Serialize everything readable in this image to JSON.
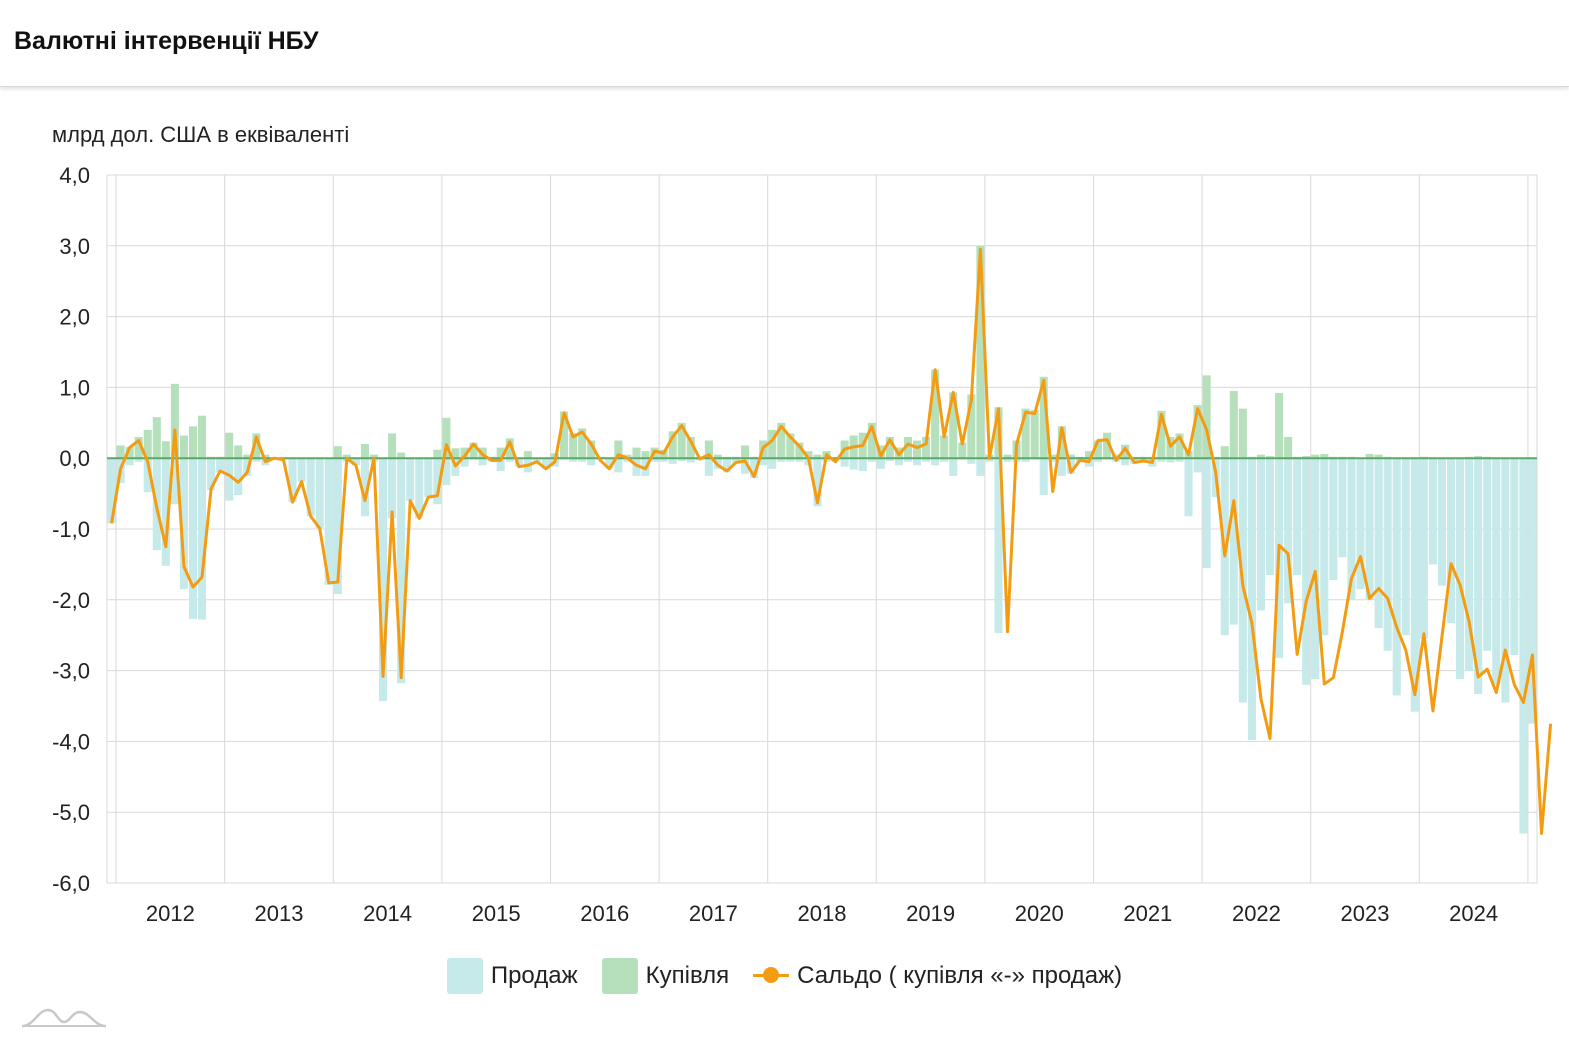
{
  "header": {
    "title": "Валютні інтервенції НБУ"
  },
  "chart_data": {
    "type": "bar+line",
    "title": "Валютні інтервенції НБУ",
    "ylabel": "млрд дол. США в еквіваленті",
    "ylim": [
      -6,
      4
    ],
    "yticks": [
      4,
      3,
      2,
      1,
      0,
      -1,
      -2,
      -3,
      -4,
      -5,
      -6
    ],
    "ytick_labels": [
      "4,0",
      "3,0",
      "2,0",
      "1,0",
      "0,0",
      "-1,0",
      "-2,0",
      "-3,0",
      "-4,0",
      "-5,0",
      "-6,0"
    ],
    "x_start": "2011-12",
    "x_end": "2024-12",
    "year_labels": [
      "2012",
      "2013",
      "2014",
      "2015",
      "2016",
      "2017",
      "2018",
      "2019",
      "2020",
      "2021",
      "2022",
      "2023",
      "2024"
    ],
    "series": [
      {
        "name": "Продаж",
        "color": "#c6e9ea",
        "values": [
          -0.92,
          -0.35,
          -0.1,
          -0.05,
          -0.48,
          -1.3,
          -1.52,
          -0.65,
          -1.85,
          -2.27,
          -2.28,
          -0.45,
          -0.2,
          -0.6,
          -0.52,
          -0.25,
          -0.05,
          -0.1,
          -0.02,
          -0.02,
          -0.62,
          -0.33,
          -0.82,
          -0.99,
          -1.79,
          -1.92,
          -0.05,
          -0.1,
          -0.82,
          -0.05,
          -3.43,
          -0.85,
          -3.18,
          -0.6,
          -0.85,
          -0.55,
          -0.65,
          -0.38,
          -0.25,
          -0.12,
          -0.02,
          -0.1,
          -0.05,
          -0.18,
          -0.05,
          -0.12,
          -0.2,
          -0.05,
          -0.15,
          -0.12,
          -0.02,
          -0.05,
          -0.05,
          -0.1,
          -0.02,
          -0.15,
          -0.2,
          -0.05,
          -0.25,
          -0.25,
          -0.05,
          -0.05,
          -0.08,
          -0.04,
          -0.06,
          -0.03,
          -0.25,
          -0.15,
          -0.2,
          -0.08,
          -0.22,
          -0.28,
          -0.1,
          -0.15,
          -0.05,
          -0.05,
          -0.05,
          -0.1,
          -0.68,
          -0.05,
          -0.05,
          -0.12,
          -0.16,
          -0.18,
          -0.05,
          -0.15,
          -0.04,
          -0.1,
          -0.05,
          -0.1,
          -0.05,
          -0.1,
          -0.05,
          -0.25,
          -0.02,
          -0.08,
          -0.25,
          -0.05,
          -2.47,
          -0.05,
          -0.05,
          -0.05,
          -0.02,
          -0.52,
          -0.05,
          -0.25,
          -0.22,
          -0.05,
          -0.12,
          -0.05,
          -0.02,
          -0.05,
          -0.1,
          -0.08,
          -0.03,
          -0.12,
          -0.05,
          -0.06,
          -0.05,
          -0.82,
          -0.2,
          -1.55,
          -0.55,
          -2.5,
          -2.35,
          -3.45,
          -3.98,
          -2.15,
          -1.65,
          -2.82,
          -2.05,
          -1.65,
          -3.2,
          -3.12,
          -2.5,
          -1.72,
          -1.4,
          -2.0,
          -1.85,
          -2.0,
          -2.4,
          -2.72,
          -3.35,
          -2.5,
          -3.58,
          -2.55,
          -1.5,
          -1.8,
          -2.33,
          -3.12,
          -3.0,
          -3.33,
          -2.72,
          -3.2,
          -3.45,
          -2.78,
          -5.3,
          -3.75
        ]
      },
      {
        "name": "Купівля",
        "color": "#b6e0bb",
        "values": [
          0.0,
          0.18,
          0.16,
          0.3,
          0.4,
          0.58,
          0.24,
          1.05,
          0.32,
          0.45,
          0.6,
          0.02,
          0.02,
          0.36,
          0.18,
          0.05,
          0.35,
          0.05,
          0.0,
          0.0,
          0.0,
          0.0,
          0.0,
          0.0,
          0.0,
          0.17,
          0.05,
          0.0,
          0.2,
          0.05,
          0.0,
          0.35,
          0.08,
          0.0,
          0.0,
          0.0,
          0.12,
          0.57,
          0.14,
          0.15,
          0.22,
          0.15,
          0.02,
          0.15,
          0.28,
          0.0,
          0.1,
          0.0,
          0.0,
          0.07,
          0.66,
          0.35,
          0.42,
          0.25,
          0.02,
          0.0,
          0.25,
          0.05,
          0.15,
          0.1,
          0.15,
          0.12,
          0.38,
          0.5,
          0.3,
          0.02,
          0.25,
          0.05,
          0.02,
          0.02,
          0.18,
          0.02,
          0.25,
          0.4,
          0.5,
          0.35,
          0.22,
          0.1,
          0.05,
          0.1,
          0.0,
          0.25,
          0.32,
          0.36,
          0.5,
          0.18,
          0.3,
          0.15,
          0.3,
          0.25,
          0.3,
          1.25,
          0.32,
          0.93,
          0.22,
          0.9,
          3.0,
          0.05,
          0.72,
          0.05,
          0.25,
          0.7,
          0.68,
          1.15,
          0.05,
          0.45,
          0.05,
          0.02,
          0.1,
          0.25,
          0.36,
          0.05,
          0.19,
          0.02,
          0.02,
          0.02,
          0.67,
          0.3,
          0.35,
          0.1,
          0.75,
          1.17,
          0.02,
          0.17,
          0.95,
          0.7,
          0.02,
          0.05,
          0.03,
          0.92,
          0.3,
          0.02,
          0.03,
          0.05,
          0.06,
          0.02,
          0.02,
          0.02,
          0.01,
          0.06,
          0.05,
          0.02,
          0.01,
          0.01,
          0.01,
          0.02,
          0.01,
          0.01,
          0.01,
          0.01,
          0.02,
          0.03,
          0.02,
          0.01,
          0.01,
          0.0,
          0.0,
          0.0,
          0.0,
          0.0,
          0.0
        ]
      },
      {
        "name": "Сальдо ( купівля «-» продаж)",
        "color": "#f39c12",
        "values": [
          -0.92,
          -0.15,
          0.15,
          0.25,
          -0.05,
          -0.7,
          -1.25,
          0.4,
          -1.53,
          -1.82,
          -1.68,
          -0.43,
          -0.18,
          -0.24,
          -0.34,
          -0.2,
          0.3,
          -0.05,
          0.0,
          -0.02,
          -0.62,
          -0.33,
          -0.82,
          -0.99,
          -1.76,
          -1.75,
          0.0,
          -0.1,
          -0.6,
          0.0,
          -3.08,
          -0.76,
          -3.1,
          -0.6,
          -0.85,
          -0.55,
          -0.53,
          0.19,
          -0.11,
          0.03,
          0.2,
          0.05,
          -0.03,
          -0.03,
          0.23,
          -0.12,
          -0.1,
          -0.05,
          -0.15,
          -0.05,
          0.64,
          0.3,
          0.37,
          0.2,
          -0.03,
          -0.15,
          0.05,
          0.0,
          -0.1,
          -0.15,
          0.1,
          0.07,
          0.3,
          0.46,
          0.24,
          -0.01,
          0.05,
          -0.1,
          -0.18,
          -0.06,
          -0.04,
          -0.26,
          0.15,
          0.25,
          0.45,
          0.3,
          0.17,
          0.0,
          -0.63,
          0.05,
          -0.05,
          0.13,
          0.16,
          0.18,
          0.45,
          0.03,
          0.26,
          0.05,
          0.2,
          0.15,
          0.2,
          1.25,
          0.3,
          0.93,
          0.2,
          0.82,
          2.95,
          0.0,
          0.7,
          -2.45,
          0.2,
          0.65,
          0.63,
          1.1,
          -0.47,
          0.43,
          -0.2,
          -0.03,
          -0.05,
          0.25,
          0.26,
          -0.03,
          0.14,
          -0.06,
          -0.04,
          -0.06,
          0.62,
          0.17,
          0.3,
          0.05,
          0.7,
          0.4,
          -0.2,
          -1.38,
          -0.6,
          -1.8,
          -2.33,
          -3.4,
          -3.96,
          -1.23,
          -1.35,
          -2.77,
          -2.02,
          -1.6,
          -3.19,
          -3.1,
          -2.45,
          -1.7,
          -1.39,
          -1.98,
          -1.84,
          -1.98,
          -2.39,
          -2.71,
          -3.34,
          -2.48,
          -3.57,
          -2.52,
          -1.49,
          -1.79,
          -2.31,
          -3.09,
          -2.98,
          -3.31,
          -2.71,
          -3.2,
          -3.45,
          -2.78,
          -5.3,
          -3.75
        ]
      }
    ],
    "legend": [
      "Продаж",
      "Купівля",
      "Сальдо ( купівля «-» продаж)"
    ],
    "grid": true
  }
}
